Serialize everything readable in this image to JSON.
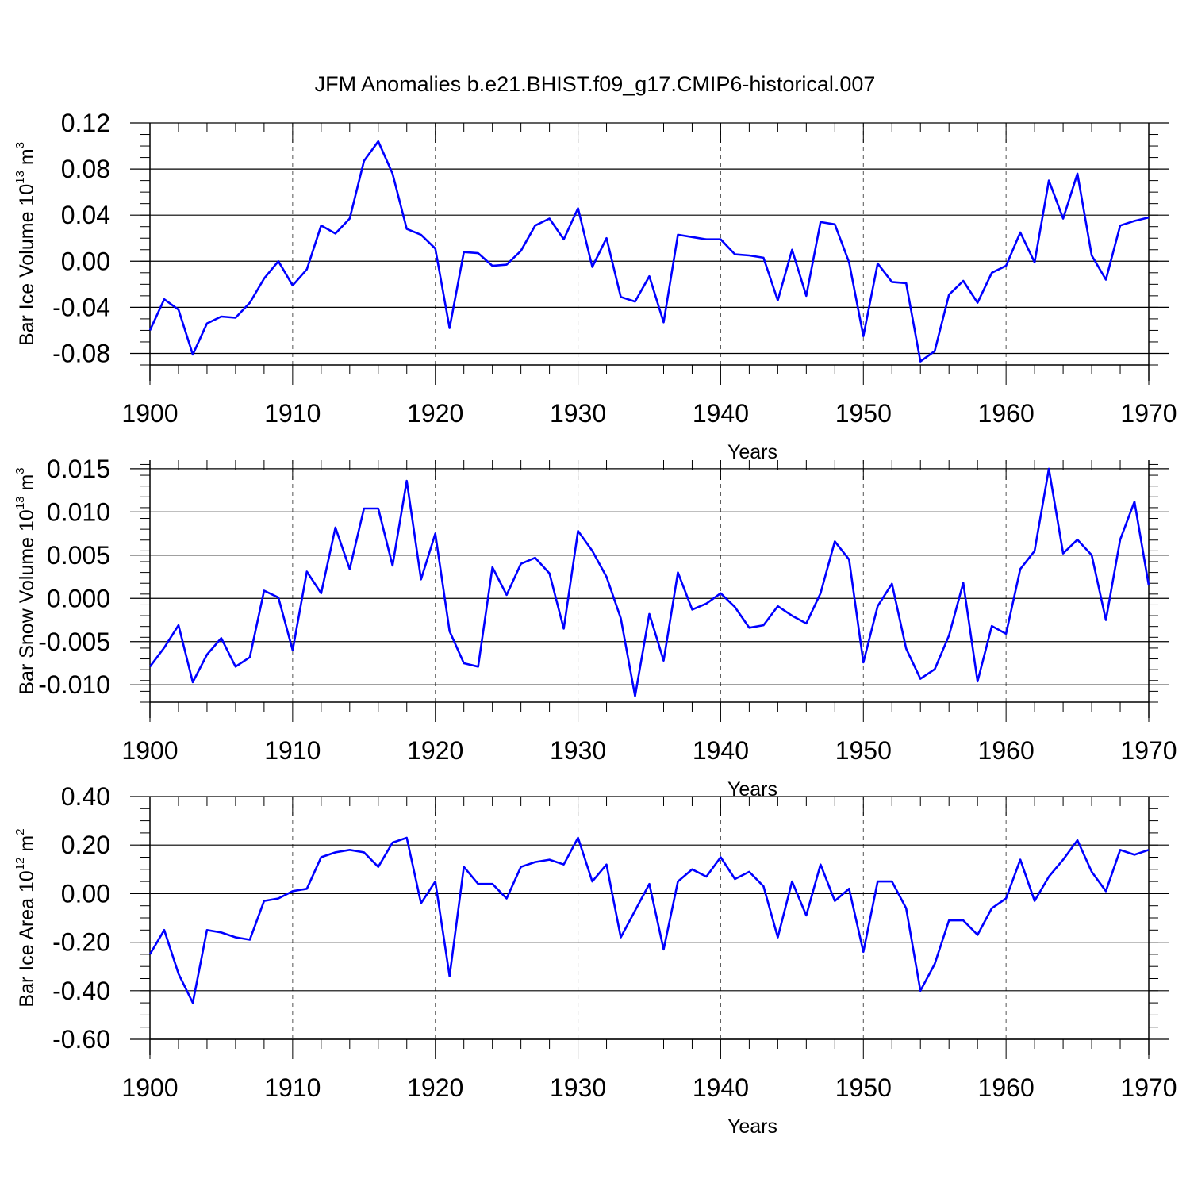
{
  "figure_title": "JFM Anomalies b.e21.BHIST.f09_g17.CMIP6-historical.007",
  "colors": {
    "line": "#0000ff",
    "axes": "#000000",
    "grid": "#555555"
  },
  "chart_data": [
    {
      "type": "line",
      "title": "JFM Anomalies b.e21.BHIST.f09_g17.CMIP6-historical.007",
      "ylabel": {
        "text": "Bar Ice Volume 10",
        "exponent": "13",
        "unit": " m",
        "unit_exponent": "3"
      },
      "xlabel": "Years",
      "xlim": [
        1900,
        1970
      ],
      "ylim": [
        -0.09,
        0.12
      ],
      "yticks": [
        -0.08,
        -0.04,
        0.0,
        0.04,
        0.08,
        0.12
      ],
      "ytick_labels": [
        "-0.08",
        "-0.04",
        "0.00",
        "0.04",
        "0.08",
        "0.12"
      ],
      "xticks": [
        1900,
        1910,
        1920,
        1930,
        1940,
        1950,
        1960,
        1970
      ],
      "xtick_labels": [
        "1900",
        "1910",
        "1920",
        "1930",
        "1940",
        "1950",
        "1960",
        "1970"
      ],
      "grid": "dashed vertical lines at decades",
      "x": [
        1900,
        1901,
        1902,
        1903,
        1904,
        1905,
        1906,
        1907,
        1908,
        1909,
        1910,
        1911,
        1912,
        1913,
        1914,
        1915,
        1916,
        1917,
        1918,
        1919,
        1920,
        1921,
        1922,
        1923,
        1924,
        1925,
        1926,
        1927,
        1928,
        1929,
        1930,
        1931,
        1932,
        1933,
        1934,
        1935,
        1936,
        1937,
        1938,
        1939,
        1940,
        1941,
        1942,
        1943,
        1944,
        1945,
        1946,
        1947,
        1948,
        1949,
        1950,
        1951,
        1952,
        1953,
        1954,
        1955,
        1956,
        1957,
        1958,
        1959,
        1960,
        1961,
        1962,
        1963,
        1964,
        1965,
        1966,
        1967,
        1968,
        1969,
        1970
      ],
      "series": [
        {
          "name": "Bar Ice Volume",
          "values": [
            -0.06,
            -0.033,
            -0.042,
            -0.081,
            -0.054,
            -0.048,
            -0.049,
            -0.036,
            -0.015,
            0.0,
            -0.021,
            -0.007,
            0.031,
            0.024,
            0.037,
            0.087,
            0.104,
            0.076,
            0.028,
            0.023,
            0.011,
            -0.058,
            0.008,
            0.007,
            -0.004,
            -0.003,
            0.009,
            0.031,
            0.037,
            0.019,
            0.046,
            -0.005,
            0.02,
            -0.031,
            -0.035,
            -0.013,
            -0.053,
            0.023,
            0.021,
            0.019,
            0.019,
            0.006,
            0.005,
            0.003,
            -0.034,
            0.01,
            -0.03,
            0.034,
            0.032,
            -0.001,
            -0.065,
            -0.002,
            -0.018,
            -0.019,
            -0.087,
            -0.078,
            -0.029,
            -0.017,
            -0.036,
            -0.01,
            -0.004,
            0.025,
            -0.001,
            0.07,
            0.037,
            0.076,
            0.005,
            -0.016,
            0.031,
            0.035,
            0.038
          ]
        }
      ]
    },
    {
      "type": "line",
      "ylabel": {
        "text": "Bar Snow Volume 10",
        "exponent": "13",
        "unit": " m",
        "unit_exponent": "3"
      },
      "xlabel": "Years",
      "xlim": [
        1900,
        1970
      ],
      "ylim": [
        -0.012,
        0.016
      ],
      "yticks": [
        -0.01,
        -0.005,
        0.0,
        0.005,
        0.01,
        0.015
      ],
      "ytick_labels": [
        "-0.010",
        "-0.005",
        "0.000",
        "0.005",
        "0.010",
        "0.015"
      ],
      "xticks": [
        1900,
        1910,
        1920,
        1930,
        1940,
        1950,
        1960,
        1970
      ],
      "xtick_labels": [
        "1900",
        "1910",
        "1920",
        "1930",
        "1940",
        "1950",
        "1960",
        "1970"
      ],
      "grid": "dashed vertical lines at decades",
      "x": [
        1900,
        1901,
        1902,
        1903,
        1904,
        1905,
        1906,
        1907,
        1908,
        1909,
        1910,
        1911,
        1912,
        1913,
        1914,
        1915,
        1916,
        1917,
        1918,
        1919,
        1920,
        1921,
        1922,
        1923,
        1924,
        1925,
        1926,
        1927,
        1928,
        1929,
        1930,
        1931,
        1932,
        1933,
        1934,
        1935,
        1936,
        1937,
        1938,
        1939,
        1940,
        1941,
        1942,
        1943,
        1944,
        1945,
        1946,
        1947,
        1948,
        1949,
        1950,
        1951,
        1952,
        1953,
        1954,
        1955,
        1956,
        1957,
        1958,
        1959,
        1960,
        1961,
        1962,
        1963,
        1964,
        1965,
        1966,
        1967,
        1968,
        1969,
        1970
      ],
      "series": [
        {
          "name": "Bar Snow Volume",
          "values": [
            -0.0079,
            -0.0057,
            -0.0031,
            -0.0097,
            -0.0065,
            -0.0046,
            -0.0079,
            -0.0068,
            0.0009,
            0.0001,
            -0.006,
            0.0031,
            0.0006,
            0.0082,
            0.0034,
            0.0104,
            0.0104,
            0.0038,
            0.0136,
            0.0022,
            0.0075,
            -0.0038,
            -0.0075,
            -0.0079,
            0.0036,
            0.0004,
            0.004,
            0.0047,
            0.0029,
            -0.0035,
            0.0078,
            0.0055,
            0.0025,
            -0.0023,
            -0.0113,
            -0.0018,
            -0.0072,
            0.003,
            -0.0013,
            -0.0006,
            0.0006,
            -0.001,
            -0.0034,
            -0.0031,
            -0.0009,
            -0.002,
            -0.0029,
            0.0006,
            0.0066,
            0.0045,
            -0.0074,
            -0.0009,
            0.0017,
            -0.0058,
            -0.0093,
            -0.0082,
            -0.0043,
            0.0018,
            -0.0096,
            -0.0032,
            -0.0041,
            0.0034,
            0.0055,
            0.015,
            0.0052,
            0.0068,
            0.005,
            -0.0025,
            0.0068,
            0.0112,
            0.0015
          ]
        }
      ]
    },
    {
      "type": "line",
      "ylabel": {
        "text": "Bar Ice Area 10",
        "exponent": "12",
        "unit": " m",
        "unit_exponent": "2"
      },
      "xlabel": "Years",
      "xlim": [
        1900,
        1970
      ],
      "ylim": [
        -0.6,
        0.4
      ],
      "yticks": [
        -0.6,
        -0.4,
        -0.2,
        0.0,
        0.2,
        0.4
      ],
      "ytick_labels": [
        "-0.60",
        "-0.40",
        "-0.20",
        "0.00",
        "0.20",
        "0.40"
      ],
      "xticks": [
        1900,
        1910,
        1920,
        1930,
        1940,
        1950,
        1960,
        1970
      ],
      "xtick_labels": [
        "1900",
        "1910",
        "1920",
        "1930",
        "1940",
        "1950",
        "1960",
        "1970"
      ],
      "grid": "dashed vertical lines at decades",
      "x": [
        1900,
        1901,
        1902,
        1903,
        1904,
        1905,
        1906,
        1907,
        1908,
        1909,
        1910,
        1911,
        1912,
        1913,
        1914,
        1915,
        1916,
        1917,
        1918,
        1919,
        1920,
        1921,
        1922,
        1923,
        1924,
        1925,
        1926,
        1927,
        1928,
        1929,
        1930,
        1931,
        1932,
        1933,
        1934,
        1935,
        1936,
        1937,
        1938,
        1939,
        1940,
        1941,
        1942,
        1943,
        1944,
        1945,
        1946,
        1947,
        1948,
        1949,
        1950,
        1951,
        1952,
        1953,
        1954,
        1955,
        1956,
        1957,
        1958,
        1959,
        1960,
        1961,
        1962,
        1963,
        1964,
        1965,
        1966,
        1967,
        1968,
        1969,
        1970
      ],
      "series": [
        {
          "name": "Bar Ice Area",
          "values": [
            -0.25,
            -0.15,
            -0.33,
            -0.45,
            -0.15,
            -0.16,
            -0.18,
            -0.19,
            -0.03,
            -0.02,
            0.01,
            0.02,
            0.15,
            0.17,
            0.18,
            0.17,
            0.11,
            0.21,
            0.23,
            -0.04,
            0.05,
            -0.34,
            0.11,
            0.04,
            0.04,
            -0.02,
            0.11,
            0.13,
            0.14,
            0.12,
            0.23,
            0.05,
            0.12,
            -0.18,
            -0.07,
            0.04,
            -0.23,
            0.05,
            0.1,
            0.07,
            0.15,
            0.06,
            0.09,
            0.03,
            -0.18,
            0.05,
            -0.09,
            0.12,
            -0.03,
            0.02,
            -0.24,
            0.05,
            0.05,
            -0.06,
            -0.4,
            -0.29,
            -0.11,
            -0.11,
            -0.17,
            -0.06,
            -0.02,
            0.14,
            -0.03,
            0.07,
            0.14,
            0.22,
            0.09,
            0.01,
            0.18,
            0.16,
            0.18
          ]
        }
      ]
    }
  ]
}
